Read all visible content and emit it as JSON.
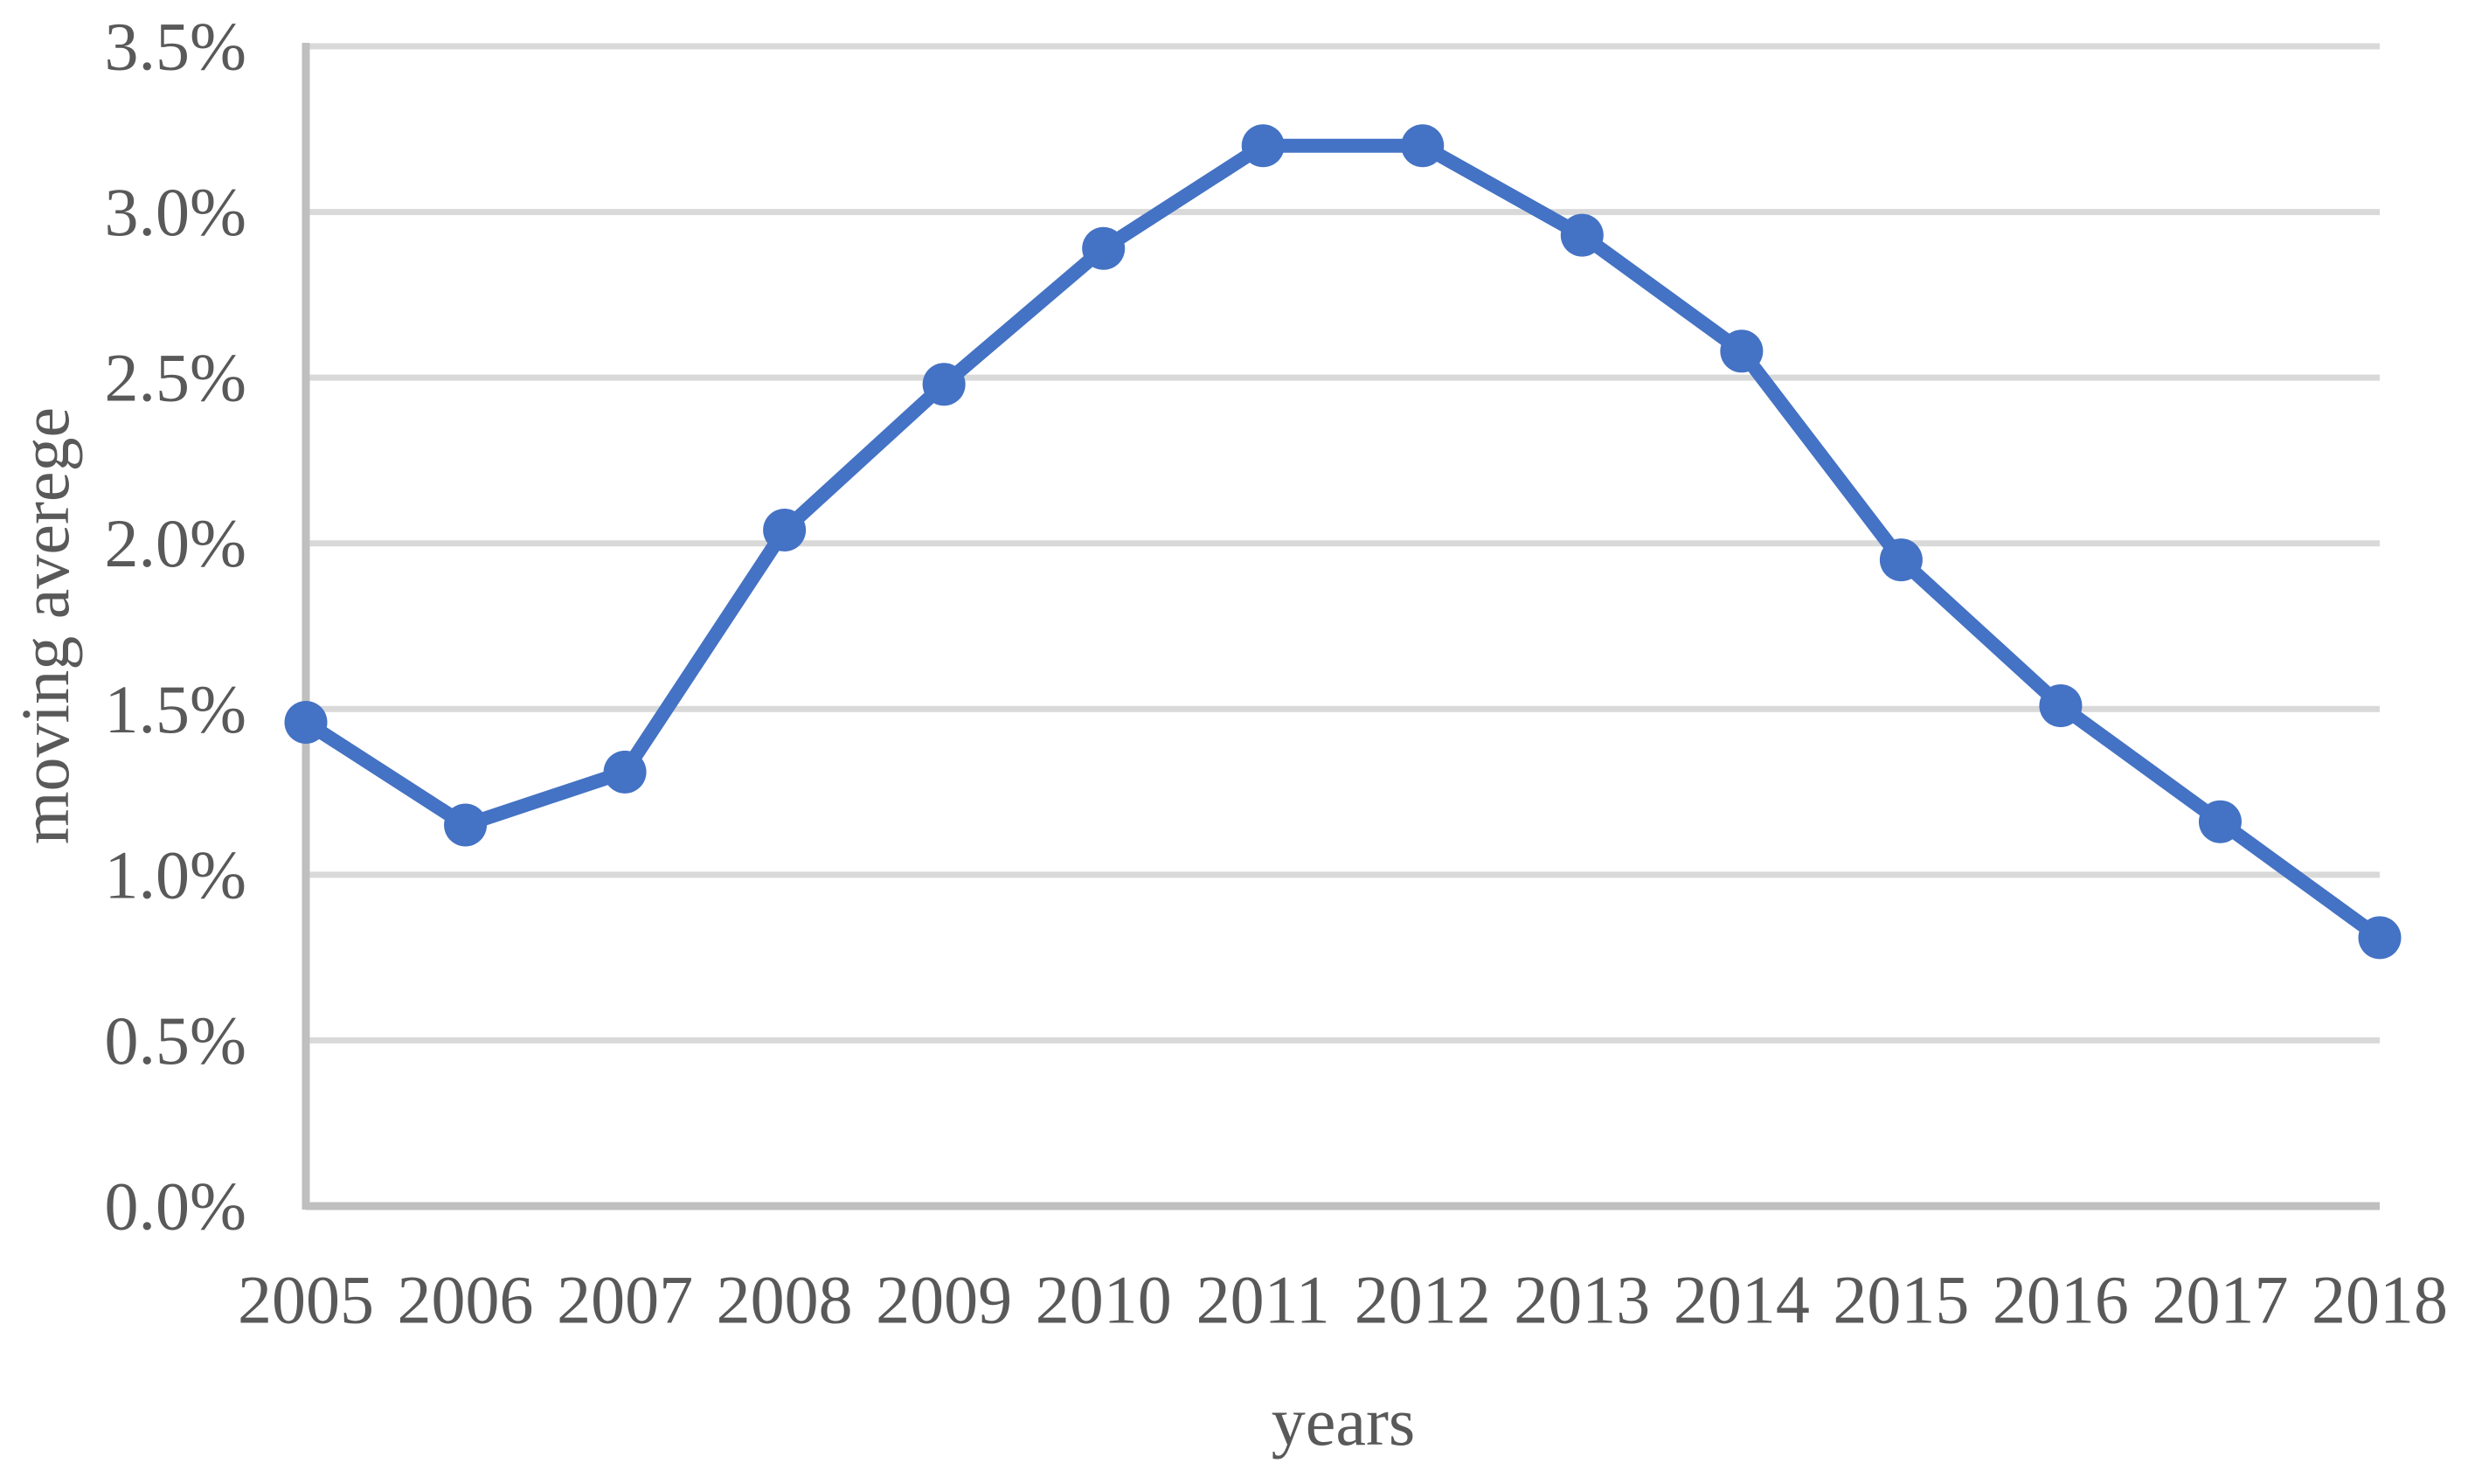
{
  "figure": {
    "background": "#FFFFFF"
  },
  "chart_data": {
    "type": "line",
    "title": "",
    "categories": [
      "2005",
      "2006",
      "2007",
      "2008",
      "2009",
      "2010",
      "2011",
      "2012",
      "2013",
      "2014",
      "2015",
      "2016",
      "2017",
      "2018"
    ],
    "series": [
      {
        "name": "moving averege",
        "values": [
          1.46,
          1.15,
          1.31,
          2.04,
          2.48,
          2.89,
          3.2,
          3.2,
          2.93,
          2.58,
          1.95,
          1.51,
          1.16,
          0.81
        ]
      }
    ],
    "xlabel": "years",
    "ylabel": "moving averege",
    "ylim": [
      0,
      3.5
    ],
    "ytick_step": 0.5,
    "ytick_labels": [
      "0.0%",
      "0.5%",
      "1.0%",
      "1.5%",
      "2.0%",
      "2.5%",
      "3.0%",
      "3.5%"
    ],
    "grid": true,
    "legend_position": "none",
    "marker": "circle",
    "colors": {
      "line": "#4472C4",
      "marker": "#4472C4",
      "gridline": "#D9D9D9",
      "axis": "#BFBFBF",
      "text": "#595959"
    }
  }
}
